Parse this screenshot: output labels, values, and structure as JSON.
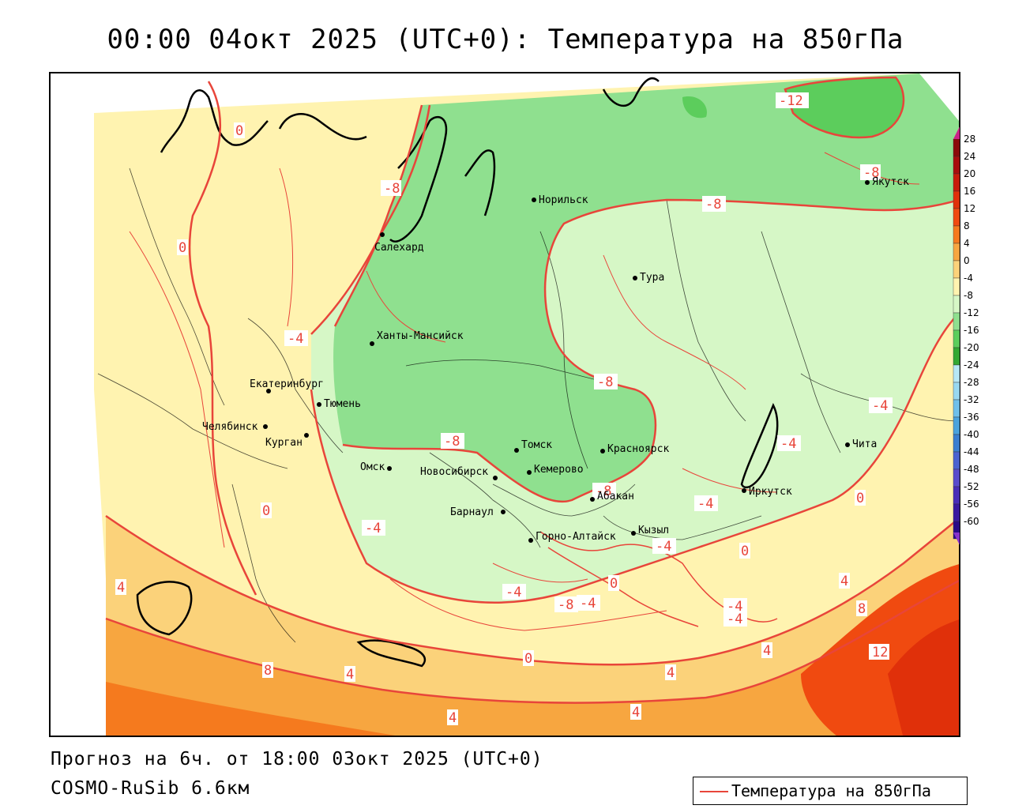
{
  "title": "00:00 04окт 2025 (UTC+0): Температура на 850гПа",
  "footer": {
    "forecast": "Прогноз на 6ч. от 18:00 03окт 2025 (UTC+0)",
    "model": "COSMO-RuSib 6.6км"
  },
  "legend": {
    "label": "Температура на 850гПа",
    "line_color": "#e8453a"
  },
  "colorbar": {
    "ticks": [
      "28",
      "24",
      "20",
      "16",
      "12",
      "8",
      "4",
      "0",
      "-4",
      "-8",
      "-12",
      "-16",
      "-20",
      "-24",
      "-28",
      "-32",
      "-36",
      "-40",
      "-44",
      "-48",
      "-52",
      "-56",
      "-60"
    ],
    "colors": [
      "#8b0a0a",
      "#a80d0d",
      "#c81a0a",
      "#e0300a",
      "#f04a10",
      "#f57a1e",
      "#f7a640",
      "#fbd27a",
      "#fff3b0",
      "#d6f7c6",
      "#8fe08f",
      "#5ccd5c",
      "#33a833",
      "#b7e7f5",
      "#99d8f0",
      "#6fc0ea",
      "#4aa3dd",
      "#3a7fd0",
      "#4a63d0",
      "#5a4ccc",
      "#4a2eb8",
      "#3a1aa0",
      "#2a0a88"
    ],
    "top_color": "#cc2288",
    "bottom_color": "#8a33cc"
  },
  "cities": [
    {
      "name": "Норильск"
    },
    {
      "name": "Якутск"
    },
    {
      "name": "Салехард"
    },
    {
      "name": "Тура"
    },
    {
      "name": "Ханты-Мансийск"
    },
    {
      "name": "Екатеринбург"
    },
    {
      "name": "Тюмень"
    },
    {
      "name": "Челябинск"
    },
    {
      "name": "Курган"
    },
    {
      "name": "Омск"
    },
    {
      "name": "Новосибирск"
    },
    {
      "name": "Томск"
    },
    {
      "name": "Кемерово"
    },
    {
      "name": "Красноярск"
    },
    {
      "name": "Абакан"
    },
    {
      "name": "Барнаул"
    },
    {
      "name": "Горно-Алтайск"
    },
    {
      "name": "Кызыл"
    },
    {
      "name": "Иркутск"
    },
    {
      "name": "Чита"
    }
  ],
  "contour_labels": [
    "-12",
    "-8",
    "-8",
    "-8",
    "0",
    "-8",
    "0",
    "-4",
    "-8",
    "-4",
    "-4",
    "-4",
    "-4",
    "0",
    "0",
    "-4",
    "-4",
    "-8",
    "-4",
    "4",
    "0",
    "-4",
    "0",
    "8",
    "4",
    "0",
    "4",
    "4",
    "4",
    "8",
    "4",
    "12",
    "4",
    "-8",
    "-4"
  ]
}
